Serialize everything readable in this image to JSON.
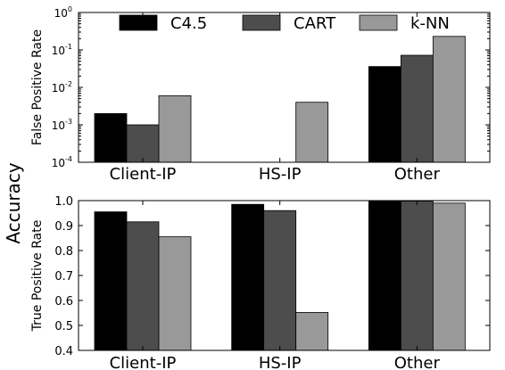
{
  "chart_data": [
    {
      "type": "bar",
      "categories": [
        "Client-IP",
        "HS-IP",
        "Other"
      ],
      "series": [
        {
          "name": "C4.5",
          "values": [
            0.002,
            null,
            0.036
          ],
          "color": "#000000"
        },
        {
          "name": "CART",
          "values": [
            0.001,
            null,
            0.072
          ],
          "color": "#4d4d4d"
        },
        {
          "name": "k-NN",
          "values": [
            0.006,
            0.004,
            0.23
          ],
          "color": "#999999"
        }
      ],
      "ylabel": "False Positive Rate",
      "yscale": "log",
      "ylim": [
        0.0001,
        1
      ],
      "yticks": [
        {
          "v": 0.0001,
          "base": "10",
          "exp": "-4"
        },
        {
          "v": 0.001,
          "base": "10",
          "exp": "-3"
        },
        {
          "v": 0.01,
          "base": "10",
          "exp": "-2"
        },
        {
          "v": 0.1,
          "base": "10",
          "exp": "-1"
        },
        {
          "v": 1,
          "base": "10",
          "exp": "0"
        }
      ],
      "legend_position": "top",
      "grid": false
    },
    {
      "type": "bar",
      "categories": [
        "Client-IP",
        "HS-IP",
        "Other"
      ],
      "series": [
        {
          "name": "C4.5",
          "values": [
            0.955,
            0.985,
            1.0
          ],
          "color": "#000000"
        },
        {
          "name": "CART",
          "values": [
            0.915,
            0.96,
            0.998
          ],
          "color": "#4d4d4d"
        },
        {
          "name": "k-NN",
          "values": [
            0.855,
            0.552,
            0.99
          ],
          "color": "#999999"
        }
      ],
      "ylabel": "True Positive Rate",
      "ylim": [
        0.4,
        1.0
      ],
      "yticks": [
        "0.4",
        "0.5",
        "0.6",
        "0.7",
        "0.8",
        "0.9",
        "1.0"
      ],
      "grid": false
    }
  ],
  "figure": {
    "side_label": "Accuracy"
  }
}
